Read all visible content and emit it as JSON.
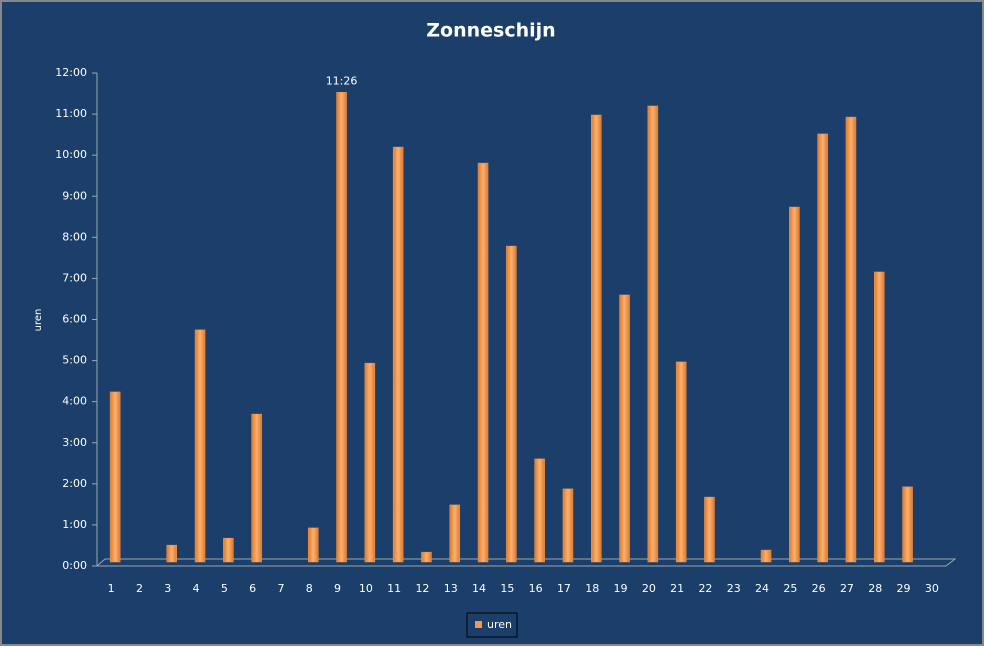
{
  "chart_data": {
    "type": "bar",
    "title": "Zonneschijn",
    "ylabel": "uren",
    "categories": [
      "1",
      "2",
      "3",
      "4",
      "5",
      "6",
      "7",
      "8",
      "9",
      "10",
      "11",
      "12",
      "13",
      "14",
      "15",
      "16",
      "17",
      "18",
      "19",
      "20",
      "21",
      "22",
      "23",
      "24",
      "25",
      "26",
      "27",
      "28",
      "29",
      "30"
    ],
    "series": [
      {
        "name": "uren",
        "color": "#f79646",
        "values": [
          4.14,
          null,
          0.41,
          5.65,
          0.58,
          3.6,
          null,
          0.83,
          11.4333,
          4.84,
          10.1,
          0.24,
          1.39,
          9.71,
          7.69,
          2.51,
          1.78,
          10.88,
          6.5,
          11.1,
          4.87,
          1.58,
          null,
          0.29,
          8.64,
          10.42,
          10.83,
          7.06,
          1.83,
          null
        ],
        "value_labels": [
          null,
          null,
          null,
          null,
          null,
          null,
          null,
          null,
          "11:26",
          null,
          null,
          null,
          null,
          null,
          null,
          null,
          null,
          null,
          null,
          null,
          null,
          null,
          null,
          null,
          null,
          null,
          null,
          null,
          null,
          null
        ]
      }
    ],
    "ylim": [
      0,
      12
    ],
    "yticks": [
      {
        "value": 0,
        "label": "0:00"
      },
      {
        "value": 1,
        "label": "1:00"
      },
      {
        "value": 2,
        "label": "2:00"
      },
      {
        "value": 3,
        "label": "3:00"
      },
      {
        "value": 4,
        "label": "4:00"
      },
      {
        "value": 5,
        "label": "5:00"
      },
      {
        "value": 6,
        "label": "6:00"
      },
      {
        "value": 7,
        "label": "7:00"
      },
      {
        "value": 8,
        "label": "8:00"
      },
      {
        "value": 9,
        "label": "9:00"
      },
      {
        "value": 10,
        "label": "10:00"
      },
      {
        "value": 11,
        "label": "11:00"
      },
      {
        "value": 12,
        "label": "12:00"
      }
    ],
    "grid": false,
    "legend": "bottom"
  }
}
